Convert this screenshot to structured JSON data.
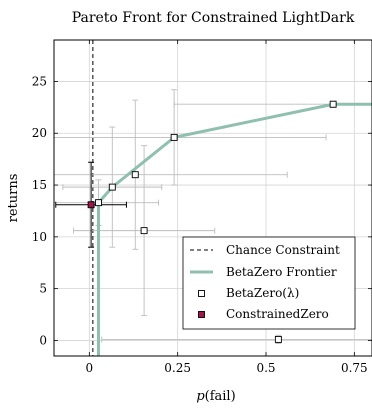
{
  "chart_data": {
    "type": "scatter",
    "title": "Pareto Front for Constrained LightDark",
    "xlabel": "p(fail)",
    "ylabel": "returns",
    "xlim": [
      -0.1,
      0.8
    ],
    "ylim": [
      -1.5,
      29
    ],
    "xticks": [
      0,
      0.25,
      0.5,
      0.75
    ],
    "xtick_labels": [
      "0",
      "0.25",
      "0.5",
      "0.75"
    ],
    "yticks": [
      0,
      5,
      10,
      15,
      20,
      25
    ],
    "ytick_labels": [
      "0",
      "5",
      "10",
      "15",
      "20",
      "25"
    ],
    "grid": true,
    "legend_position": "bottom-right",
    "legend": {
      "chance": "Chance Constraint",
      "frontier": "BetaZero Frontier",
      "betazero": "BetaZero(λ)",
      "constrained": "ConstrainedZero"
    },
    "chance_constraint_x": 0.01,
    "frontier": {
      "color": "#8fbfae",
      "points": [
        {
          "x": 0.026,
          "y": -1.5
        },
        {
          "x": 0.026,
          "y": 13.3
        },
        {
          "x": 0.065,
          "y": 14.8
        },
        {
          "x": 0.24,
          "y": 19.6
        },
        {
          "x": 0.69,
          "y": 22.8
        },
        {
          "x": 0.8,
          "y": 22.8
        }
      ]
    },
    "betazero": [
      {
        "x": 0.026,
        "y": 13.3,
        "x_err": 0.17,
        "y_err": 2.2
      },
      {
        "x": 0.065,
        "y": 14.8,
        "x_err": 0.14,
        "y_err": 5.8
      },
      {
        "x": 0.13,
        "y": 16.0,
        "x_err": 0.43,
        "y_err": 7.2
      },
      {
        "x": 0.155,
        "y": 10.6,
        "x_err": 0.2,
        "y_err": 8.2
      },
      {
        "x": 0.24,
        "y": 19.6,
        "x_err": 0.43,
        "y_err": 4.6
      },
      {
        "x": 0.69,
        "y": 22.8,
        "x_err": 0.45,
        "y_err": 0.3
      },
      {
        "x": 0.535,
        "y": 0.1,
        "x_err": 0.5,
        "y_err": 0.4
      }
    ],
    "constrained": {
      "x": 0.005,
      "y": 13.1,
      "x_err": 0.1,
      "y_err": 4.1,
      "color": "#a0154a"
    }
  }
}
